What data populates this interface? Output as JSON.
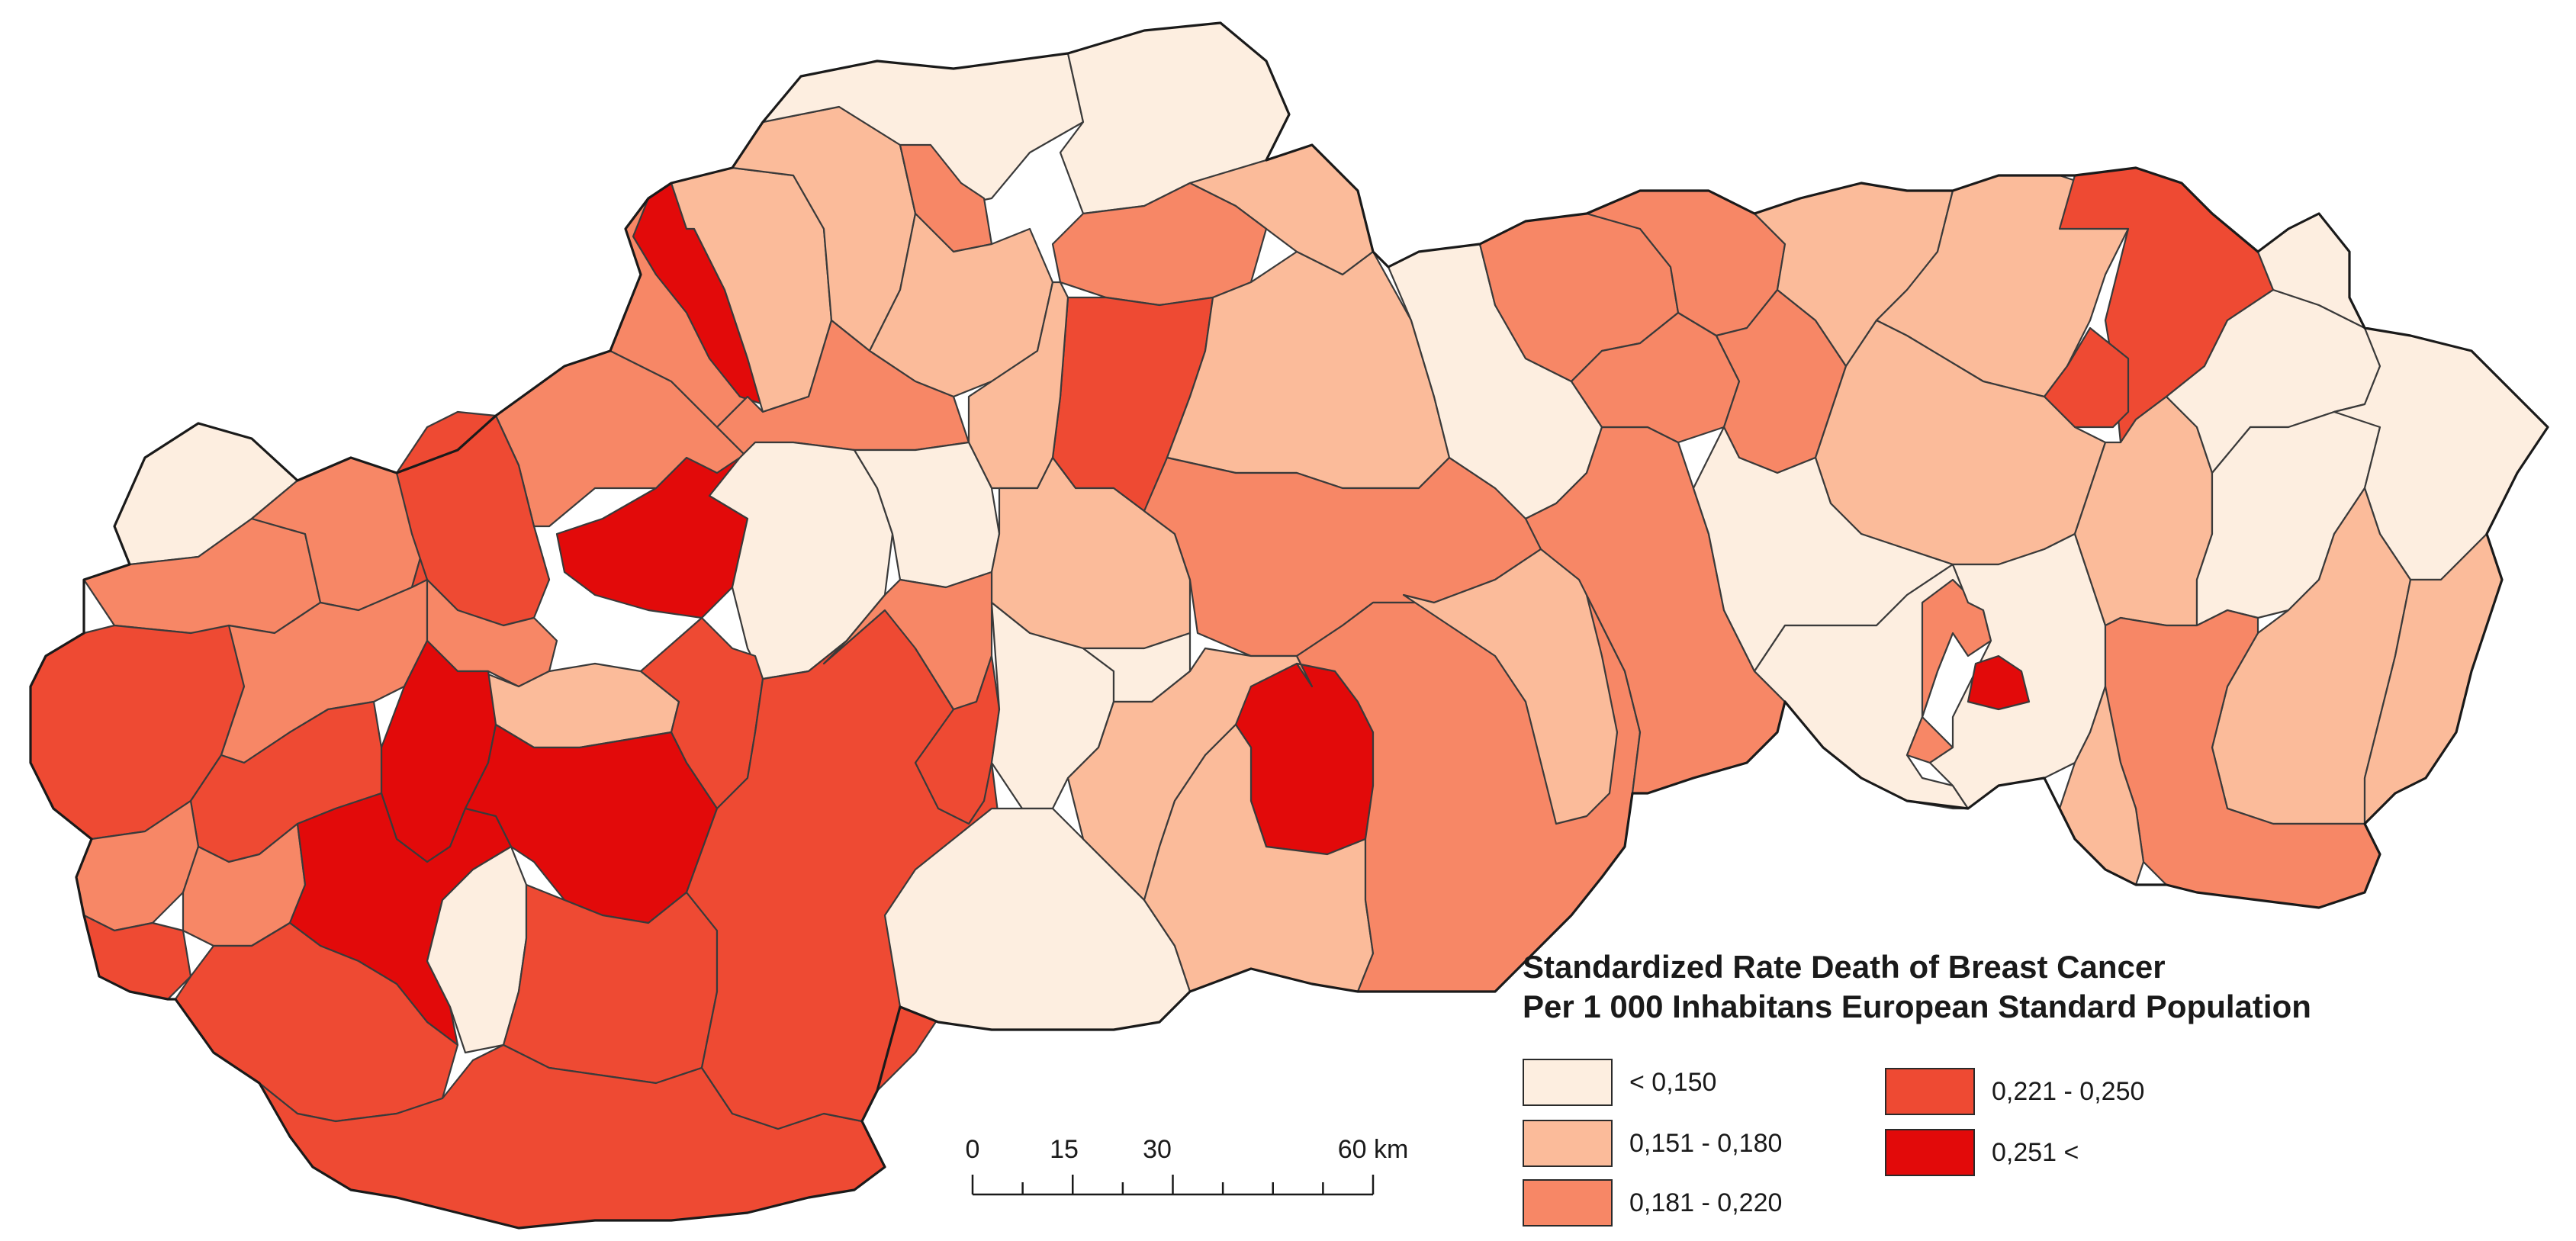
{
  "legend": {
    "title_line1": "Standardized Rate Death of Breast Cancer",
    "title_line2": "Per 1 000 Inhabitans European Standard Population",
    "classes": [
      {
        "label": "< 0,150",
        "color": "#fdeee0"
      },
      {
        "label": "0,151 - 0,180",
        "color": "#fbbb9a"
      },
      {
        "label": "0,181 - 0,220",
        "color": "#f78766"
      },
      {
        "label": "0,221 - 0,250",
        "color": "#ee4a33"
      },
      {
        "label": "0,251 <",
        "color": "#e20a0a"
      }
    ]
  },
  "scale_bar": {
    "labels": [
      "0",
      "15",
      "30",
      "60 km"
    ],
    "max_km": 60
  }
}
